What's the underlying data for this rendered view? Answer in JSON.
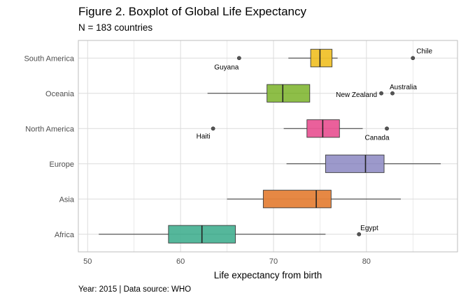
{
  "chart_data": {
    "type": "boxplot",
    "title": "Figure 2. Boxplot of Global Life Expectancy",
    "subtitle": "N = 183 countries",
    "xlabel": "Life expectancy from birth",
    "ylabel": "",
    "caption": "Year: 2015 | Data source: WHO",
    "xlim": [
      49,
      89.8
    ],
    "xticks": [
      50,
      60,
      70,
      80
    ],
    "grid": true,
    "categories": [
      "South America",
      "Oceania",
      "North America",
      "Europe",
      "Asia",
      "Africa"
    ],
    "series": [
      {
        "name": "South America",
        "color": "#f0c22c",
        "whisker_low": 71.6,
        "q1": 74.0,
        "median": 75.0,
        "q3": 76.3,
        "whisker_high": 76.9,
        "outliers": [
          {
            "label": "Guyana",
            "value": 66.3
          },
          {
            "label": "Chile",
            "value": 85.0
          }
        ]
      },
      {
        "name": "Oceania",
        "color": "#88bb3e",
        "whisker_low": 62.9,
        "q1": 69.3,
        "median": 71.0,
        "q3": 73.9,
        "whisker_high": 73.9,
        "outliers": [
          {
            "label": "New Zealand",
            "value": 81.6
          },
          {
            "label": "Australia",
            "value": 82.8
          }
        ]
      },
      {
        "name": "North America",
        "color": "#e95796",
        "whisker_low": 71.1,
        "q1": 73.6,
        "median": 75.3,
        "q3": 77.1,
        "whisker_high": 79.6,
        "outliers": [
          {
            "label": "Haiti",
            "value": 63.5
          },
          {
            "label": "Canada",
            "value": 82.2
          }
        ]
      },
      {
        "name": "Europe",
        "color": "#9794c8",
        "whisker_low": 71.4,
        "q1": 75.6,
        "median": 79.9,
        "q3": 81.9,
        "whisker_high": 88.0,
        "outliers": []
      },
      {
        "name": "Asia",
        "color": "#e5823a",
        "whisker_low": 65.0,
        "q1": 68.9,
        "median": 74.6,
        "q3": 76.2,
        "whisker_high": 83.7,
        "outliers": []
      },
      {
        "name": "Africa",
        "color": "#4cb396",
        "whisker_low": 51.2,
        "q1": 58.7,
        "median": 62.3,
        "q3": 65.9,
        "whisker_high": 75.6,
        "outliers": [
          {
            "label": "Egypt",
            "value": 79.2
          }
        ]
      }
    ]
  }
}
